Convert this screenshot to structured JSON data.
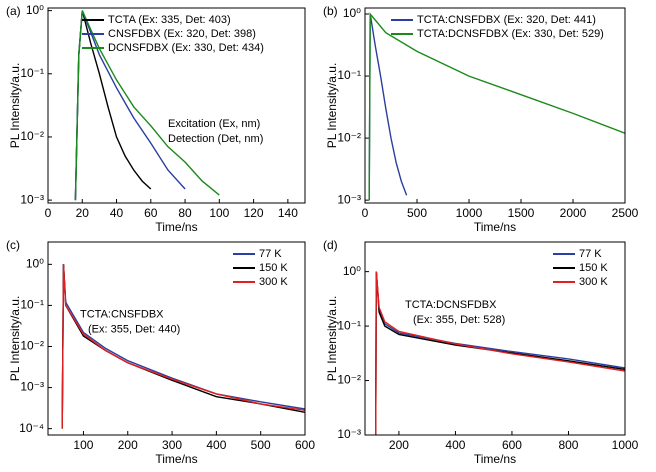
{
  "chart_data": [
    {
      "type": "line",
      "panel_label": "(a)",
      "x_label": "Time/ns",
      "y_label": "PL Intensity/a.u.",
      "log_y": true,
      "legend": "upper right",
      "xlim": [
        0,
        150
      ],
      "xticks": [
        0,
        20,
        40,
        60,
        80,
        100,
        120,
        140
      ],
      "ylim": [
        0.0009,
        1.1
      ],
      "yticks": [
        {
          "value": 0.001,
          "label": "10⁻³"
        },
        {
          "value": 0.01,
          "label": "10⁻²"
        },
        {
          "value": 0.1,
          "label": "10⁻¹"
        },
        {
          "value": 1,
          "label": "10⁰"
        }
      ],
      "annotations": [
        "Excitation (Ex, nm)",
        "Detection (Det, nm)"
      ],
      "series": [
        {
          "name": "TCTA (Ex: 335, Det: 403)",
          "color": "#000000",
          "x": [
            16,
            18,
            20,
            25,
            30,
            35,
            40,
            45,
            50,
            55,
            60
          ],
          "values": [
            0.001,
            0.2,
            1,
            0.3,
            0.1,
            0.03,
            0.01,
            0.005,
            0.003,
            0.002,
            0.0015
          ]
        },
        {
          "name": "CNSFDBX (Ex: 320, Det: 398)",
          "color": "#2b3fa0",
          "x": [
            16,
            18,
            20,
            25,
            30,
            40,
            50,
            60,
            70,
            80
          ],
          "values": [
            0.001,
            0.2,
            1,
            0.45,
            0.2,
            0.06,
            0.02,
            0.008,
            0.003,
            0.0015
          ]
        },
        {
          "name": "DCNSFDBX (Ex: 330, Det: 434)",
          "color": "#1a8a1a",
          "x": [
            16,
            18,
            20,
            25,
            30,
            40,
            50,
            60,
            70,
            80,
            90,
            100
          ],
          "values": [
            0.001,
            0.2,
            1,
            0.5,
            0.25,
            0.08,
            0.03,
            0.015,
            0.007,
            0.004,
            0.002,
            0.0012
          ]
        }
      ]
    },
    {
      "type": "line",
      "panel_label": "(b)",
      "x_label": "Time/ns",
      "y_label": "PL Intensity/a.u.",
      "log_y": true,
      "legend": "upper right",
      "xlim": [
        0,
        2500
      ],
      "xticks": [
        0,
        500,
        1000,
        1500,
        2000,
        2500
      ],
      "ylim": [
        0.0009,
        1.25
      ],
      "yticks": [
        {
          "value": 0.001,
          "label": "10⁻³"
        },
        {
          "value": 0.01,
          "label": "10⁻²"
        },
        {
          "value": 0.1,
          "label": "10⁻¹"
        },
        {
          "value": 1,
          "label": "10⁰"
        }
      ],
      "series": [
        {
          "name": "TCTA:CNSFDBX (Ex: 320, Det: 441)",
          "color": "#2b3fa0",
          "x": [
            40,
            50,
            100,
            150,
            200,
            250,
            300,
            350,
            400
          ],
          "values": [
            0.001,
            1,
            0.3,
            0.1,
            0.03,
            0.01,
            0.004,
            0.002,
            0.0012
          ]
        },
        {
          "name": "TCTA:DCNSFDBX (Ex: 330, Det: 529)",
          "color": "#1a8a1a",
          "x": [
            40,
            50,
            200,
            500,
            1000,
            1500,
            2000,
            2500
          ],
          "values": [
            0.001,
            1,
            0.5,
            0.25,
            0.1,
            0.05,
            0.025,
            0.012
          ]
        }
      ]
    },
    {
      "type": "line",
      "panel_label": "(c)",
      "x_label": "Time/ns",
      "y_label": "PL Intensity/a.u.",
      "log_y": true,
      "legend": "upper right",
      "xlim": [
        20,
        600
      ],
      "xticks": [
        100,
        200,
        300,
        400,
        500,
        600
      ],
      "ylim": [
        7e-05,
        3.5
      ],
      "yticks": [
        {
          "value": 0.0001,
          "label": "10⁻⁴"
        },
        {
          "value": 0.001,
          "label": "10⁻³"
        },
        {
          "value": 0.01,
          "label": "10⁻²"
        },
        {
          "value": 0.1,
          "label": "10⁻¹"
        },
        {
          "value": 1,
          "label": "10⁰"
        }
      ],
      "annotations": [
        "TCTA:CNSFDBX",
        "(Ex: 355, Det: 440)"
      ],
      "series": [
        {
          "name": "77 K",
          "color": "#2b3fa0",
          "x": [
            52,
            55,
            60,
            100,
            150,
            200,
            300,
            400,
            500,
            600
          ],
          "values": [
            0.0001,
            1,
            0.12,
            0.022,
            0.009,
            0.0045,
            0.0017,
            0.0007,
            0.00045,
            0.0003
          ]
        },
        {
          "name": "150 K",
          "color": "#000000",
          "x": [
            52,
            55,
            60,
            100,
            150,
            200,
            300,
            400,
            500,
            600
          ],
          "values": [
            0.0001,
            1,
            0.1,
            0.018,
            0.008,
            0.004,
            0.0015,
            0.0006,
            0.0004,
            0.00025
          ]
        },
        {
          "name": "300 K",
          "color": "#e02020",
          "x": [
            52,
            55,
            60,
            100,
            150,
            200,
            300,
            400,
            500,
            600
          ],
          "values": [
            0.0001,
            1,
            0.1,
            0.02,
            0.008,
            0.004,
            0.0016,
            0.0007,
            0.0004,
            0.00028
          ]
        }
      ]
    },
    {
      "type": "line",
      "panel_label": "(d)",
      "x_label": "Time/ns",
      "y_label": "PL Intensity/a.u.",
      "log_y": true,
      "legend": "upper right",
      "xlim": [
        80,
        1000
      ],
      "xticks": [
        200,
        400,
        600,
        800,
        1000
      ],
      "ylim": [
        0.001,
        3.5
      ],
      "yticks": [
        {
          "value": 0.001,
          "label": "10⁻³"
        },
        {
          "value": 0.01,
          "label": "10⁻²"
        },
        {
          "value": 0.1,
          "label": "10⁻¹"
        },
        {
          "value": 1,
          "label": "10⁰"
        }
      ],
      "annotations": [
        "TCTA:DCNSFDBX",
        "(Ex: 355, Det: 528)"
      ],
      "series": [
        {
          "name": "77 K",
          "color": "#2b3fa0",
          "x": [
            118,
            120,
            130,
            150,
            200,
            400,
            600,
            800,
            1000
          ],
          "values": [
            0.001,
            1,
            0.2,
            0.11,
            0.075,
            0.048,
            0.034,
            0.025,
            0.017
          ]
        },
        {
          "name": "150 K",
          "color": "#000000",
          "x": [
            118,
            120,
            130,
            150,
            200,
            400,
            600,
            800,
            1000
          ],
          "values": [
            0.001,
            1,
            0.18,
            0.1,
            0.07,
            0.045,
            0.032,
            0.023,
            0.016
          ]
        },
        {
          "name": "300 K",
          "color": "#e02020",
          "x": [
            118,
            120,
            130,
            150,
            200,
            400,
            600,
            800,
            1000
          ],
          "values": [
            0.001,
            1,
            0.22,
            0.12,
            0.08,
            0.047,
            0.031,
            0.022,
            0.015
          ]
        }
      ]
    }
  ]
}
